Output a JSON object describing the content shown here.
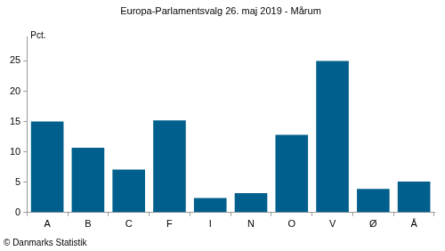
{
  "chart_data": {
    "type": "bar",
    "title": "Europa-Parlamentsvalg 26. maj 2019 - Mårum",
    "y_label": "Pct.",
    "source": "© Danmarks Statistik",
    "categories": [
      "A",
      "B",
      "C",
      "F",
      "I",
      "N",
      "O",
      "V",
      "Ø",
      "Å"
    ],
    "values": [
      15.0,
      10.7,
      7.1,
      15.2,
      2.4,
      3.2,
      12.8,
      25.0,
      3.9,
      5.1
    ],
    "color": "#005f8c",
    "ylim": [
      0,
      29
    ],
    "yticks": [
      0,
      5,
      10,
      15,
      20,
      25
    ],
    "grid": false
  }
}
